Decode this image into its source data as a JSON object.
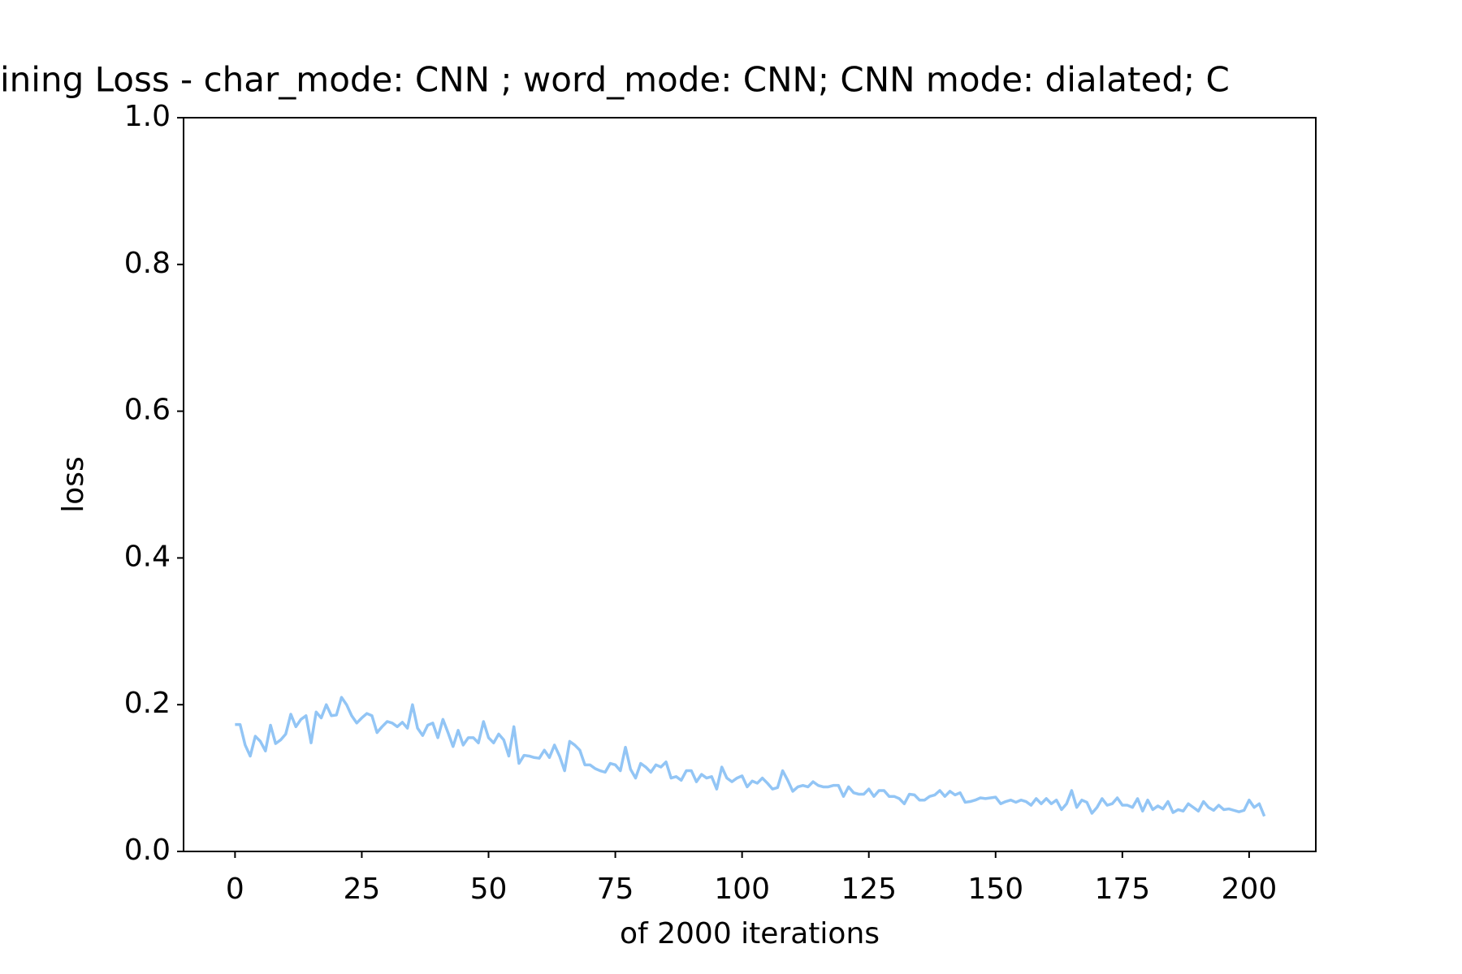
{
  "chart_data": {
    "type": "line",
    "title": "ining Loss - char_mode: CNN ; word_mode: CNN; CNN mode: dialated; C",
    "x_label": "of 2000 iterations",
    "y_label": "loss",
    "x": [
      0,
      1,
      2,
      3,
      4,
      5,
      6,
      7,
      8,
      9,
      10,
      11,
      12,
      13,
      14,
      15,
      16,
      17,
      18,
      19,
      20,
      21,
      22,
      23,
      24,
      25,
      26,
      27,
      28,
      29,
      30,
      31,
      32,
      33,
      34,
      35,
      36,
      37,
      38,
      39,
      40,
      41,
      42,
      43,
      44,
      45,
      46,
      47,
      48,
      49,
      50,
      51,
      52,
      53,
      54,
      55,
      56,
      57,
      58,
      59,
      60,
      61,
      62,
      63,
      64,
      65,
      66,
      67,
      68,
      69,
      70,
      71,
      72,
      73,
      74,
      75,
      76,
      77,
      78,
      79,
      80,
      81,
      82,
      83,
      84,
      85,
      86,
      87,
      88,
      89,
      90,
      91,
      92,
      93,
      94,
      95,
      96,
      97,
      98,
      99,
      100,
      101,
      102,
      103,
      104,
      105,
      106,
      107,
      108,
      109,
      110,
      111,
      112,
      113,
      114,
      115,
      116,
      117,
      118,
      119,
      120,
      121,
      122,
      123,
      124,
      125,
      126,
      127,
      128,
      129,
      130,
      131,
      132,
      133,
      134,
      135,
      136,
      137,
      138,
      139,
      140,
      141,
      142,
      143,
      144,
      145,
      146,
      147,
      148,
      149,
      150,
      151,
      152,
      153,
      154,
      155,
      156,
      157,
      158,
      159,
      160,
      161,
      162,
      163,
      164,
      165,
      166,
      167,
      168,
      169,
      170,
      171,
      172,
      173,
      174,
      175,
      176,
      177,
      178,
      179,
      180,
      181,
      182,
      183,
      184,
      185,
      186,
      187,
      188,
      189,
      190,
      191,
      192,
      193,
      194,
      195,
      196,
      197,
      198,
      199,
      200,
      201,
      202,
      203
    ],
    "series": [
      {
        "name": "loss",
        "color": "#92c5f5",
        "values": [
          0.173,
          0.173,
          0.145,
          0.13,
          0.157,
          0.15,
          0.137,
          0.172,
          0.147,
          0.152,
          0.16,
          0.187,
          0.17,
          0.18,
          0.185,
          0.148,
          0.19,
          0.182,
          0.2,
          0.185,
          0.186,
          0.21,
          0.2,
          0.185,
          0.175,
          0.182,
          0.188,
          0.185,
          0.162,
          0.17,
          0.177,
          0.175,
          0.17,
          0.176,
          0.168,
          0.2,
          0.168,
          0.158,
          0.172,
          0.175,
          0.155,
          0.18,
          0.162,
          0.143,
          0.165,
          0.145,
          0.155,
          0.155,
          0.148,
          0.177,
          0.155,
          0.148,
          0.16,
          0.152,
          0.13,
          0.17,
          0.12,
          0.131,
          0.13,
          0.128,
          0.127,
          0.138,
          0.128,
          0.145,
          0.13,
          0.11,
          0.15,
          0.145,
          0.138,
          0.118,
          0.118,
          0.113,
          0.11,
          0.108,
          0.12,
          0.118,
          0.11,
          0.142,
          0.112,
          0.1,
          0.12,
          0.115,
          0.108,
          0.118,
          0.115,
          0.122,
          0.1,
          0.102,
          0.097,
          0.11,
          0.11,
          0.095,
          0.105,
          0.1,
          0.102,
          0.085,
          0.115,
          0.1,
          0.095,
          0.1,
          0.103,
          0.088,
          0.096,
          0.093,
          0.1,
          0.093,
          0.085,
          0.087,
          0.11,
          0.097,
          0.082,
          0.088,
          0.09,
          0.088,
          0.095,
          0.09,
          0.088,
          0.088,
          0.09,
          0.09,
          0.075,
          0.088,
          0.08,
          0.078,
          0.078,
          0.085,
          0.075,
          0.083,
          0.083,
          0.075,
          0.075,
          0.072,
          0.065,
          0.078,
          0.077,
          0.07,
          0.07,
          0.075,
          0.077,
          0.083,
          0.075,
          0.082,
          0.077,
          0.08,
          0.067,
          0.068,
          0.07,
          0.073,
          0.072,
          0.073,
          0.074,
          0.065,
          0.068,
          0.07,
          0.067,
          0.07,
          0.068,
          0.063,
          0.072,
          0.065,
          0.072,
          0.065,
          0.07,
          0.057,
          0.065,
          0.083,
          0.06,
          0.07,
          0.067,
          0.052,
          0.06,
          0.072,
          0.063,
          0.065,
          0.073,
          0.063,
          0.063,
          0.06,
          0.072,
          0.055,
          0.07,
          0.057,
          0.062,
          0.058,
          0.068,
          0.053,
          0.057,
          0.055,
          0.065,
          0.06,
          0.055,
          0.068,
          0.06,
          0.056,
          0.063,
          0.057,
          0.058,
          0.056,
          0.054,
          0.056,
          0.07,
          0.06,
          0.065,
          0.048
        ]
      }
    ],
    "xlim": [
      -10.15,
      213.15
    ],
    "xticks": [
      0,
      25,
      50,
      75,
      100,
      125,
      150,
      175,
      200
    ],
    "ylim": [
      0,
      1
    ],
    "yticks": [
      {
        "value": 0,
        "label": "0.0"
      },
      0.2,
      0.4,
      0.6,
      0.8,
      {
        "value": 1,
        "label": "1.0"
      }
    ],
    "grid": false
  }
}
